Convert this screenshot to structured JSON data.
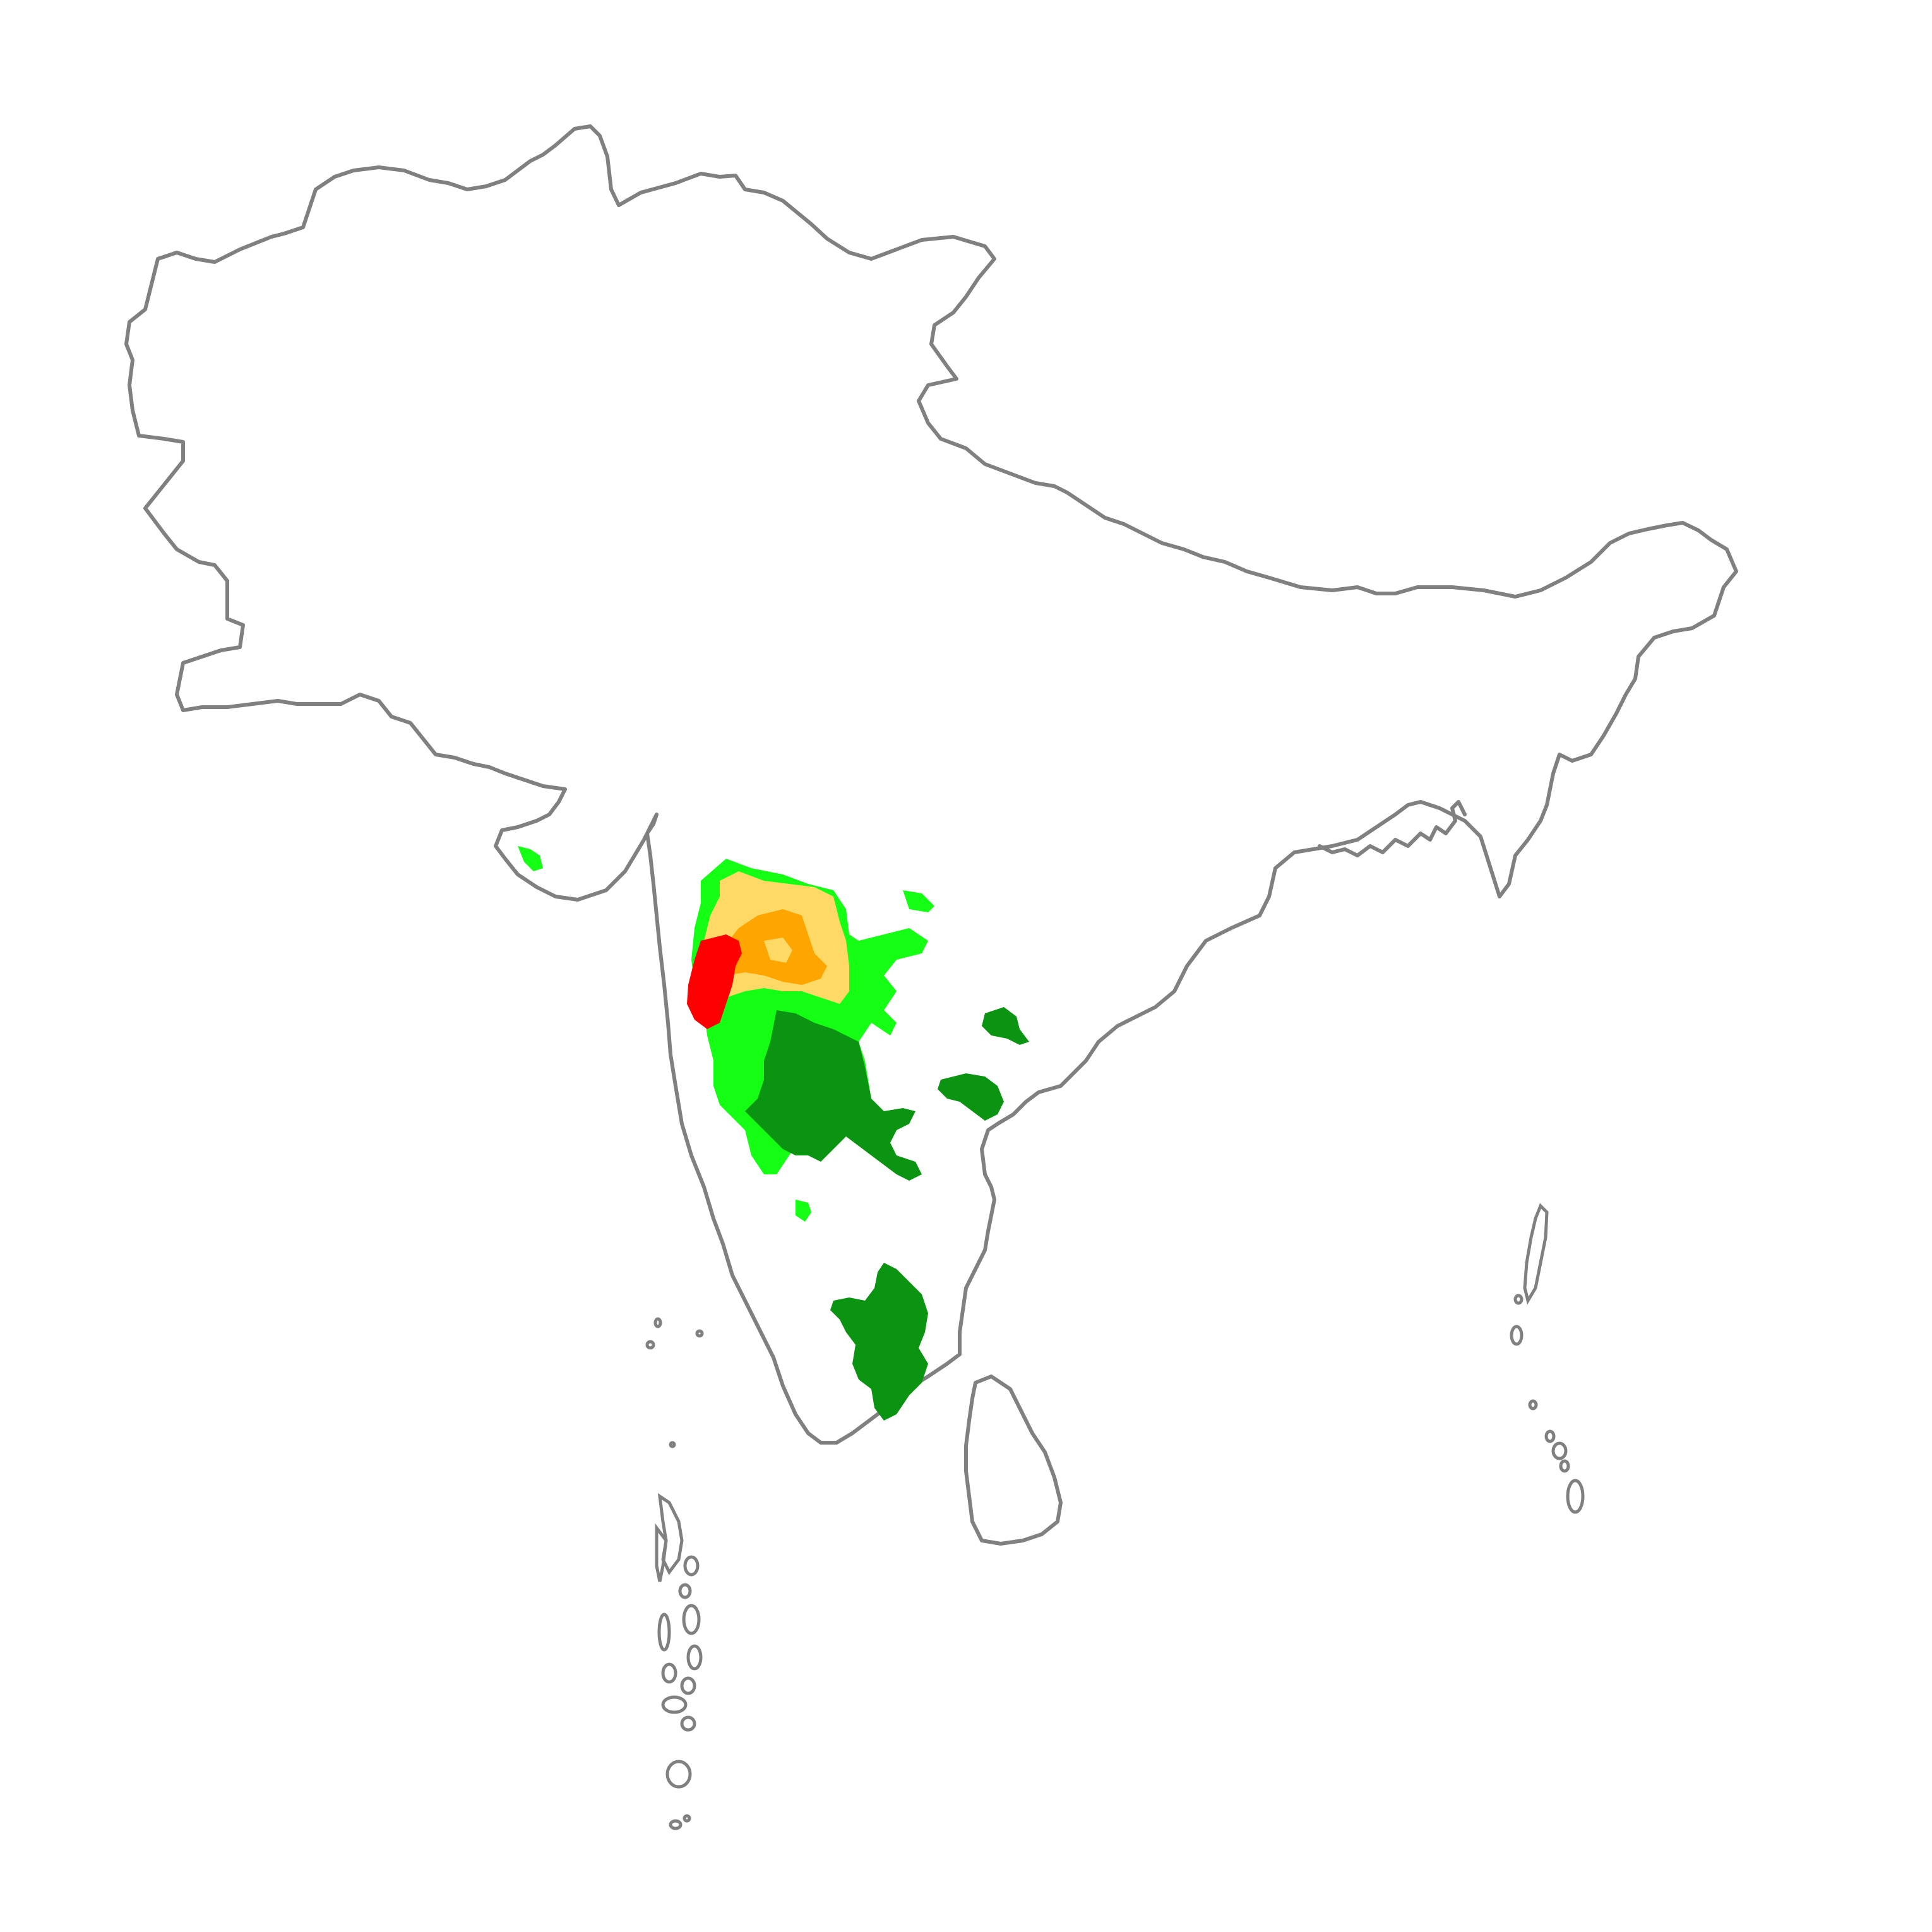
{
  "map": {
    "outline_color": "#808080",
    "background_color": "#ffffff",
    "regions": [
      "South Asia"
    ],
    "class_colors": {
      "dark-green": "#0a9412",
      "light-green": "#14ff14",
      "light-orange": "#ffd966",
      "orange": "#ffa500",
      "red": "#ff0000"
    }
  }
}
